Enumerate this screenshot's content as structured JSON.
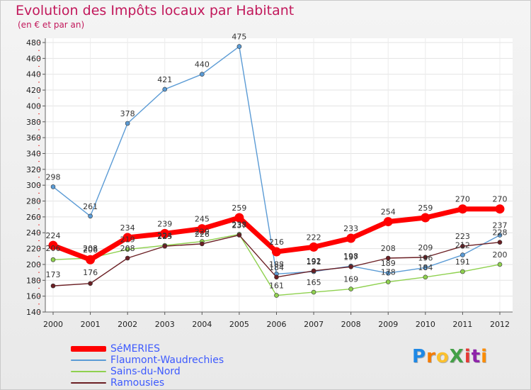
{
  "chart_data": {
    "type": "line",
    "title": "Evolution des Impôts locaux par Habitant",
    "subtitle": "(en € et par an)",
    "xlabel": "",
    "ylabel": "",
    "ylim": [
      140,
      480
    ],
    "yticks": [
      140,
      160,
      180,
      200,
      220,
      240,
      260,
      280,
      300,
      320,
      340,
      360,
      380,
      400,
      420,
      440,
      460,
      480
    ],
    "x": [
      "2000",
      "2001",
      "2002",
      "2003",
      "2004",
      "2005",
      "2006",
      "2007",
      "2008",
      "2009",
      "2010",
      "2011",
      "2012"
    ],
    "series": [
      {
        "name": "SéMERIES",
        "color": "#ff0000",
        "values": [
          224,
          206,
          234,
          239,
          245,
          259,
          216,
          222,
          233,
          254,
          259,
          270,
          270
        ],
        "labels": [
          224,
          206,
          234,
          239,
          245,
          259,
          216,
          222,
          233,
          254,
          259,
          270,
          270
        ]
      },
      {
        "name": "Flaumont-Waudrechies",
        "color": "#5b9bd5",
        "values": [
          298,
          261,
          378,
          421,
          440,
          475,
          188,
          191,
          198,
          189,
          196,
          212,
          237
        ],
        "labels": [
          298,
          261,
          378,
          421,
          440,
          475,
          188,
          191,
          198,
          189,
          196,
          212,
          237
        ]
      },
      {
        "name": "Sains-du-Nord",
        "color": "#8fd14f",
        "values": [
          206,
          208,
          219,
          224,
          229,
          238,
          161,
          165,
          169,
          178,
          184,
          191,
          200
        ],
        "labels": [
          206,
          208,
          219,
          224,
          229,
          238,
          161,
          165,
          169,
          178,
          184,
          191,
          200
        ]
      },
      {
        "name": "Ramousies",
        "color": "#6b1f24",
        "values": [
          173,
          176,
          208,
          223,
          226,
          237,
          184,
          192,
          197,
          208,
          209,
          223,
          228
        ],
        "labels": [
          173,
          176,
          208,
          223,
          226,
          237,
          184,
          192,
          197,
          208,
          209,
          223,
          228
        ]
      }
    ]
  },
  "logo": {
    "text": "ProXiti",
    "colors": [
      "#1e88e5",
      "#f57c00",
      "#fbc02d",
      "#43a047",
      "#e53935",
      "#8e24aa",
      "#fb8c00"
    ]
  }
}
